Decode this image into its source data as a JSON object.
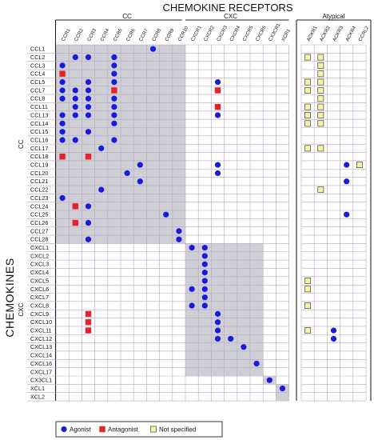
{
  "title": "CHEMOKINE RECEPTORS",
  "y_title": "CHEMOKINES",
  "col_groups": [
    {
      "label": "CC",
      "columns": [
        "CCR1",
        "CCR2",
        "CCR3",
        "CCR4",
        "CCR5",
        "CCR6",
        "CCR7",
        "CCR8",
        "CCR9",
        "CCR10"
      ]
    },
    {
      "label": "CXC",
      "columns": [
        "CXCR1",
        "CXCR2",
        "CXCR3",
        "CXCR4",
        "CXCR5",
        "CXCR6",
        "CX3CR1",
        "XCR1"
      ]
    },
    {
      "label": "Atypical",
      "columns": [
        "ACKR1",
        "ACKR2",
        "ACKR3",
        "ACKR4",
        "CCRL2"
      ]
    }
  ],
  "row_groups": [
    {
      "label": "CC",
      "rows": [
        "CCL1",
        "CCL2",
        "CCL3",
        "CCL4",
        "CCL5",
        "CCL7",
        "CCL8",
        "CCL11",
        "CCL13",
        "CCL14",
        "CCL15",
        "CCL16",
        "CCL17",
        "CCL18",
        "CCL19",
        "CCL20",
        "CCL21",
        "CCL22",
        "CCL23",
        "CCL24",
        "CCL25",
        "CCL26",
        "CCL27",
        "CCL28"
      ]
    },
    {
      "label": "CXC",
      "rows": [
        "CXCL1",
        "CXCL2",
        "CXCL3",
        "CXCL4",
        "CXCL5",
        "CXCL6",
        "CXCL7",
        "CXCL8",
        "CXCL9",
        "CXCL10",
        "CXCL11",
        "CXCL12",
        "CXCL13",
        "CXCL14",
        "CXCL16",
        "CXCL17"
      ]
    },
    {
      "label": "",
      "rows": [
        "CX3CL1",
        "XCL1",
        "XCL2"
      ]
    }
  ],
  "legend": [
    {
      "type": "A",
      "label": "Agonist",
      "color": "#1a1adc"
    },
    {
      "type": "N",
      "label": "Antagonist",
      "color": "#e8222a"
    },
    {
      "type": "U",
      "label": "Not specified",
      "color": "#f6f3a2"
    }
  ],
  "colors": {
    "shade": "#cfcfd6",
    "grid": "#b9a7c2",
    "line": "#222222"
  },
  "interactions": [
    [
      "CCL1",
      "CCR8",
      "A"
    ],
    [
      "CCL2",
      "CCR2",
      "A"
    ],
    [
      "CCL2",
      "CCR3",
      "A"
    ],
    [
      "CCL2",
      "CCR5",
      "A"
    ],
    [
      "CCL2",
      "ACKR1",
      "U"
    ],
    [
      "CCL2",
      "ACKR2",
      "U"
    ],
    [
      "CCL3",
      "CCR1",
      "A"
    ],
    [
      "CCL3",
      "CCR5",
      "A"
    ],
    [
      "CCL3",
      "ACKR2",
      "U"
    ],
    [
      "CCL4",
      "CCR1",
      "N"
    ],
    [
      "CCL4",
      "CCR5",
      "A"
    ],
    [
      "CCL4",
      "ACKR2",
      "U"
    ],
    [
      "CCL5",
      "CCR1",
      "A"
    ],
    [
      "CCL5",
      "CCR3",
      "A"
    ],
    [
      "CCL5",
      "CCR5",
      "A"
    ],
    [
      "CCL5",
      "CXCR3",
      "A"
    ],
    [
      "CCL5",
      "ACKR1",
      "U"
    ],
    [
      "CCL5",
      "ACKR2",
      "U"
    ],
    [
      "CCL7",
      "CCR1",
      "A"
    ],
    [
      "CCL7",
      "CCR2",
      "A"
    ],
    [
      "CCL7",
      "CCR3",
      "A"
    ],
    [
      "CCL7",
      "CCR5",
      "N"
    ],
    [
      "CCL7",
      "CXCR3",
      "N"
    ],
    [
      "CCL7",
      "ACKR1",
      "U"
    ],
    [
      "CCL7",
      "ACKR2",
      "U"
    ],
    [
      "CCL8",
      "CCR1",
      "A"
    ],
    [
      "CCL8",
      "CCR2",
      "A"
    ],
    [
      "CCL8",
      "CCR3",
      "A"
    ],
    [
      "CCL8",
      "CCR5",
      "A"
    ],
    [
      "CCL8",
      "ACKR2",
      "U"
    ],
    [
      "CCL11",
      "CCR2",
      "A"
    ],
    [
      "CCL11",
      "CCR3",
      "A"
    ],
    [
      "CCL11",
      "CCR5",
      "A"
    ],
    [
      "CCL11",
      "CXCR3",
      "N"
    ],
    [
      "CCL11",
      "ACKR1",
      "U"
    ],
    [
      "CCL11",
      "ACKR2",
      "U"
    ],
    [
      "CCL13",
      "CCR1",
      "A"
    ],
    [
      "CCL13",
      "CCR2",
      "A"
    ],
    [
      "CCL13",
      "CCR3",
      "A"
    ],
    [
      "CCL13",
      "CCR5",
      "A"
    ],
    [
      "CCL13",
      "CXCR3",
      "A"
    ],
    [
      "CCL13",
      "ACKR1",
      "U"
    ],
    [
      "CCL13",
      "ACKR2",
      "U"
    ],
    [
      "CCL14",
      "CCR1",
      "A"
    ],
    [
      "CCL14",
      "CCR5",
      "A"
    ],
    [
      "CCL14",
      "ACKR1",
      "U"
    ],
    [
      "CCL14",
      "ACKR2",
      "U"
    ],
    [
      "CCL15",
      "CCR1",
      "A"
    ],
    [
      "CCL15",
      "CCR3",
      "A"
    ],
    [
      "CCL16",
      "CCR1",
      "A"
    ],
    [
      "CCL16",
      "CCR2",
      "A"
    ],
    [
      "CCL16",
      "CCR5",
      "A"
    ],
    [
      "CCL17",
      "CCR4",
      "A"
    ],
    [
      "CCL17",
      "ACKR1",
      "U"
    ],
    [
      "CCL17",
      "ACKR2",
      "U"
    ],
    [
      "CCL18",
      "CCR1",
      "N"
    ],
    [
      "CCL18",
      "CCR3",
      "N"
    ],
    [
      "CCL19",
      "CCR7",
      "A"
    ],
    [
      "CCL19",
      "CXCR3",
      "A"
    ],
    [
      "CCL19",
      "ACKR4",
      "A"
    ],
    [
      "CCL19",
      "CCRL2",
      "U"
    ],
    [
      "CCL20",
      "CCR6",
      "A"
    ],
    [
      "CCL20",
      "CXCR3",
      "A"
    ],
    [
      "CCL21",
      "CCR7",
      "A"
    ],
    [
      "CCL21",
      "ACKR4",
      "A"
    ],
    [
      "CCL22",
      "CCR4",
      "A"
    ],
    [
      "CCL22",
      "ACKR2",
      "U"
    ],
    [
      "CCL23",
      "CCR1",
      "A"
    ],
    [
      "CCL24",
      "CCR2",
      "N"
    ],
    [
      "CCL24",
      "CCR3",
      "A"
    ],
    [
      "CCL25",
      "CCR9",
      "A"
    ],
    [
      "CCL25",
      "ACKR4",
      "A"
    ],
    [
      "CCL26",
      "CCR2",
      "N"
    ],
    [
      "CCL26",
      "CCR3",
      "A"
    ],
    [
      "CCL27",
      "CCR10",
      "A"
    ],
    [
      "CCL28",
      "CCR3",
      "A"
    ],
    [
      "CCL28",
      "CCR10",
      "A"
    ],
    [
      "CXCL1",
      "CXCR1",
      "A"
    ],
    [
      "CXCL1",
      "CXCR2",
      "A"
    ],
    [
      "CXCL2",
      "CXCR2",
      "A"
    ],
    [
      "CXCL3",
      "CXCR2",
      "A"
    ],
    [
      "CXCL4",
      "CXCR2",
      "A"
    ],
    [
      "CXCL5",
      "CXCR2",
      "A"
    ],
    [
      "CXCL5",
      "ACKR1",
      "U"
    ],
    [
      "CXCL6",
      "CXCR1",
      "A"
    ],
    [
      "CXCL6",
      "CXCR2",
      "A"
    ],
    [
      "CXCL6",
      "ACKR1",
      "U"
    ],
    [
      "CXCL7",
      "CXCR2",
      "A"
    ],
    [
      "CXCL8",
      "CXCR1",
      "A"
    ],
    [
      "CXCL8",
      "CXCR2",
      "A"
    ],
    [
      "CXCL8",
      "ACKR1",
      "U"
    ],
    [
      "CXCL9",
      "CCR3",
      "N"
    ],
    [
      "CXCL9",
      "CXCR3",
      "A"
    ],
    [
      "CXCL10",
      "CCR3",
      "N"
    ],
    [
      "CXCL10",
      "CXCR3",
      "A"
    ],
    [
      "CXCL11",
      "CCR3",
      "N"
    ],
    [
      "CXCL11",
      "CXCR3",
      "A"
    ],
    [
      "CXCL11",
      "ACKR1",
      "U"
    ],
    [
      "CXCL11",
      "ACKR3",
      "A"
    ],
    [
      "CXCL12",
      "CXCR3",
      "A"
    ],
    [
      "CXCL12",
      "CXCR4",
      "A"
    ],
    [
      "CXCL12",
      "ACKR3",
      "A"
    ],
    [
      "CXCL13",
      "CXCR5",
      "A"
    ],
    [
      "CXCL16",
      "CXCR6",
      "A"
    ],
    [
      "CX3CL1",
      "CX3CR1",
      "A"
    ],
    [
      "XCL1",
      "XCR1",
      "A"
    ]
  ]
}
